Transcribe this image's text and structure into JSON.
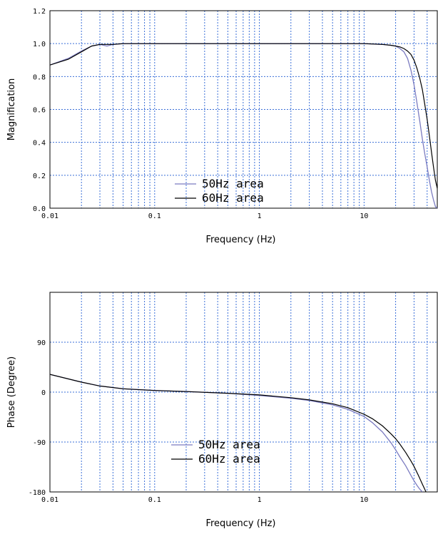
{
  "chart_data": [
    {
      "type": "line",
      "name": "magnification",
      "xlabel": "Frequency (Hz)",
      "ylabel": "Magnification",
      "xscale": "log",
      "xlim": [
        0.01,
        50
      ],
      "ylim": [
        0.0,
        1.2
      ],
      "xticks": [
        0.01,
        0.1,
        1,
        10
      ],
      "xtick_labels": [
        "0.01",
        "0.1",
        "1",
        "10"
      ],
      "yticks": [
        0.0,
        0.2,
        0.4,
        0.6,
        0.8,
        1.0,
        1.2
      ],
      "ytick_labels": [
        "0.0",
        "0.2",
        "0.4",
        "0.6",
        "0.8",
        "1.0",
        "1.2"
      ],
      "grid": true,
      "legend_position": "lower-center",
      "series": [
        {
          "name": "50Hz area",
          "color": "#7b7bc0",
          "x": [
            0.01,
            0.015,
            0.02,
            0.025,
            0.03,
            0.035,
            0.04,
            0.05,
            0.1,
            1,
            10,
            15,
            18,
            20,
            22,
            24,
            26,
            28,
            30,
            32,
            34,
            36,
            38,
            40,
            42,
            44,
            46,
            48,
            50
          ],
          "y": [
            0.87,
            0.91,
            0.955,
            0.985,
            0.995,
            0.985,
            0.995,
            1.0,
            1.0,
            1.0,
            1.0,
            0.995,
            0.99,
            0.985,
            0.97,
            0.95,
            0.91,
            0.84,
            0.75,
            0.64,
            0.53,
            0.42,
            0.33,
            0.25,
            0.17,
            0.1,
            0.05,
            0.01,
            0.0
          ]
        },
        {
          "name": "60Hz area",
          "color": "#000000",
          "x": [
            0.01,
            0.015,
            0.02,
            0.025,
            0.03,
            0.04,
            0.05,
            0.1,
            1,
            10,
            15,
            18,
            20,
            22,
            24,
            26,
            28,
            30,
            32,
            34,
            36,
            38,
            40,
            42,
            44,
            46,
            48,
            50
          ],
          "y": [
            0.87,
            0.905,
            0.95,
            0.985,
            0.995,
            0.995,
            1.0,
            1.0,
            1.0,
            1.0,
            0.995,
            0.99,
            0.985,
            0.98,
            0.97,
            0.955,
            0.935,
            0.9,
            0.85,
            0.79,
            0.72,
            0.63,
            0.54,
            0.44,
            0.34,
            0.25,
            0.17,
            0.12
          ]
        }
      ]
    },
    {
      "type": "line",
      "name": "phase",
      "xlabel": "Frequency (Hz)",
      "ylabel": "Phase (Degree)",
      "xscale": "log",
      "xlim": [
        0.01,
        50
      ],
      "ylim": [
        -180,
        180
      ],
      "xticks": [
        0.01,
        0.1,
        1,
        10
      ],
      "xtick_labels": [
        "0.01",
        "0.1",
        "1",
        "10"
      ],
      "yticks": [
        -180,
        -90,
        0,
        90
      ],
      "ytick_labels": [
        "-180",
        "-90",
        "0",
        "90"
      ],
      "grid": true,
      "legend_position": "lower-center",
      "series": [
        {
          "name": "50Hz area",
          "color": "#7b7bc0",
          "x": [
            0.01,
            0.02,
            0.03,
            0.05,
            0.1,
            0.2,
            0.5,
            1,
            2,
            3,
            5,
            7,
            10,
            12,
            15,
            18,
            20,
            22,
            25,
            28,
            30,
            32,
            34,
            36
          ],
          "y": [
            32,
            18,
            11,
            6,
            3,
            1,
            -2,
            -6,
            -11,
            -15,
            -23,
            -31,
            -44,
            -55,
            -72,
            -91,
            -104,
            -117,
            -133,
            -150,
            -160,
            -168,
            -175,
            -180
          ]
        },
        {
          "name": "60Hz area",
          "color": "#000000",
          "x": [
            0.01,
            0.02,
            0.03,
            0.05,
            0.1,
            0.2,
            0.5,
            1,
            2,
            3,
            5,
            7,
            10,
            12,
            15,
            18,
            20,
            22,
            25,
            28,
            30,
            33,
            36,
            39
          ],
          "y": [
            32,
            18,
            11,
            6,
            3,
            1,
            -2,
            -5,
            -10,
            -14,
            -21,
            -28,
            -40,
            -48,
            -61,
            -75,
            -84,
            -94,
            -109,
            -124,
            -134,
            -150,
            -166,
            -180
          ]
        }
      ]
    }
  ]
}
